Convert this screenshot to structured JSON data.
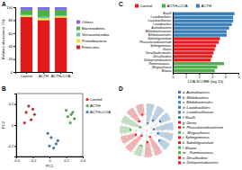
{
  "chart_data": [
    {
      "type": "bar",
      "title": "A",
      "stacked": true,
      "legend": "right",
      "ylabel": "Relative abundance (%)",
      "categories": [
        "Control",
        "ACTH",
        "ACTH+COA"
      ],
      "series": [
        {
          "name": "Firmicutes",
          "color": "#e31a1c",
          "values": [
            85,
            80,
            84
          ]
        },
        {
          "name": "Proteobacteria",
          "color": "#ffd92f",
          "values": [
            2,
            3,
            2
          ]
        },
        {
          "name": "Verrucomicrobia",
          "color": "#66c2a5",
          "values": [
            1,
            2,
            1
          ]
        },
        {
          "name": "Bacteroidetes",
          "color": "#4daf4a",
          "values": [
            8,
            11,
            9
          ]
        },
        {
          "name": "Others",
          "color": "#7b68ee",
          "values": [
            4,
            4,
            4
          ]
        }
      ],
      "ylim": [
        0,
        100
      ],
      "yticks": [
        0,
        20,
        40,
        60,
        80,
        100
      ]
    },
    {
      "type": "scatter",
      "title": "B",
      "xlabel": "PC1",
      "ylabel": "PC2",
      "legend": "right",
      "series": [
        {
          "name": "Control",
          "color": "#e41a1c",
          "x": [
            -0.28,
            -0.22,
            -0.25,
            -0.18,
            -0.3,
            -0.2
          ],
          "values": [
            0.12,
            0.05,
            0.18,
            0.1,
            0.02,
            0.15
          ]
        },
        {
          "name": "ACTH",
          "color": "#4daf4a",
          "x": [
            0.22,
            0.28,
            0.25,
            0.3,
            0.2,
            0.26
          ],
          "values": [
            0.08,
            0.12,
            0.02,
            0.06,
            0.14,
            0.1
          ]
        },
        {
          "name": "ACTH+COA",
          "color": "#377eb8",
          "x": [
            0.02,
            0.08,
            -0.02,
            0.1,
            0.05,
            0.0
          ],
          "values": [
            -0.12,
            -0.18,
            -0.08,
            -0.15,
            -0.22,
            -0.2
          ]
        }
      ],
      "xlim": [
        -0.4,
        0.4
      ],
      "xticks": [
        -0.4,
        -0.2,
        0,
        0.2,
        0.4
      ],
      "ylim": [
        -0.3,
        0.3
      ],
      "yticks": [
        -0.2,
        0,
        0.2
      ]
    },
    {
      "type": "bar",
      "title": "C",
      "orientation": "horizontal",
      "legend": "top",
      "xlabel": "LDA SCORE (log 10)",
      "categories": [
        "Bacilli",
        "Lactobacillales",
        "Lactobacillaceae",
        "Lactobacillus",
        "Actinobacteria",
        "Bifidobacteriaceae",
        "Bifidobacteriales",
        "Subdoligranulum",
        "Phascolarctobacterium",
        "Sphingomonas",
        "Dorea",
        "Desulfovibrionales",
        "Desulfovibrio",
        "Deltaproteobacteria",
        "_Ruminococcus_",
        "_Megasphaera",
        "Blautia"
      ],
      "series": [
        {
          "name": "Control",
          "color": "#e41a1c",
          "values": [
            null,
            null,
            null,
            null,
            null,
            null,
            null,
            3.6,
            3.5,
            3.3,
            3.2,
            3.1,
            3.0,
            2.9,
            null,
            null,
            null
          ]
        },
        {
          "name": "ACTH+COA",
          "color": "#4daf4a",
          "values": [
            null,
            null,
            null,
            null,
            null,
            null,
            null,
            null,
            null,
            null,
            null,
            null,
            null,
            null,
            3.9,
            3.4,
            3.2
          ]
        },
        {
          "name": "ACTH",
          "color": "#377eb8",
          "values": [
            4.7,
            4.6,
            4.6,
            4.5,
            4.3,
            4.1,
            4.1,
            null,
            null,
            null,
            null,
            null,
            null,
            null,
            null,
            null,
            null
          ]
        }
      ],
      "xlim": [
        0,
        5
      ],
      "xticks": [
        0,
        1,
        2,
        3,
        4,
        5
      ]
    },
    {
      "type": "cladogram",
      "title": "D",
      "labels": [
        "a: Actinobacteria",
        "b: Bifidobacteria",
        "c: Bifidobacteriales",
        "d: Lactobacillales",
        "e: Lactobacillaceae",
        "f: Bacilli",
        "g: Dorea",
        "h: Phascolarctobacterium",
        "i: _Megasphaera",
        "j: Sphingomonas",
        "k: Subdoligranulum",
        "l: Blautia",
        "m: _Ruminococcus_",
        "n: Desulfovibrio",
        "o: Deltaproteobacteria"
      ],
      "colors": [
        "#377eb8",
        "#377eb8",
        "#377eb8",
        "#377eb8",
        "#377eb8",
        "#377eb8",
        "#e41a1c",
        "#e41a1c",
        "#4daf4a",
        "#e41a1c",
        "#e41a1c",
        "#4daf4a",
        "#4daf4a",
        "#e41a1c",
        "#e41a1c"
      ]
    }
  ]
}
